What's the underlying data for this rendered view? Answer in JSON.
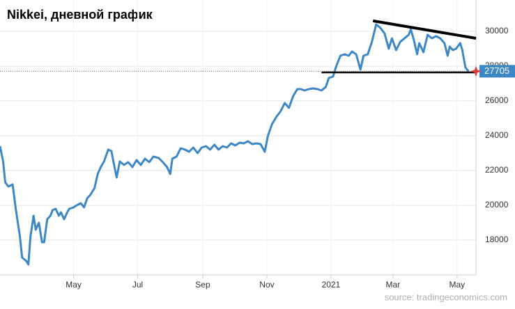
{
  "chart_data": {
    "type": "line",
    "title": "Nikkei, дневной график",
    "source": "source: tradingeconomics.com",
    "series": [
      {
        "name": "Nikkei",
        "color": "#3d87c7",
        "x": [
          0,
          3,
          5,
          8,
          12,
          15,
          19,
          21,
          25,
          27,
          29,
          32,
          34,
          37,
          40,
          42,
          45,
          48,
          50,
          53,
          56,
          58,
          61,
          64,
          66,
          70,
          73,
          77,
          80,
          83,
          86,
          90,
          93,
          96,
          99,
          103,
          106,
          109,
          111,
          114,
          118,
          122,
          126,
          130,
          134,
          138,
          142,
          146,
          151,
          155,
          159,
          162,
          164,
          168,
          172,
          176,
          180,
          184,
          188,
          192,
          196,
          200,
          204,
          208,
          212,
          216,
          220,
          224,
          228,
          232,
          236,
          240,
          244,
          248,
          252,
          255,
          259,
          263,
          267,
          271,
          275,
          279,
          283,
          286,
          290,
          294,
          298,
          302,
          306,
          310,
          313,
          317,
          320,
          324,
          328,
          332,
          335,
          339,
          343,
          346,
          350,
          354,
          358,
          362,
          366,
          370,
          373,
          377,
          381,
          385,
          389,
          391,
          394,
          397,
          399,
          403,
          407,
          411,
          415,
          419,
          423,
          426,
          428,
          431,
          434,
          438,
          440,
          443,
          446
        ],
        "values": [
          23400,
          22520,
          21320,
          21080,
          21200,
          19800,
          18200,
          17000,
          16800,
          16600,
          18200,
          19400,
          18600,
          19000,
          17880,
          17880,
          19200,
          19400,
          19720,
          19800,
          19400,
          19600,
          19200,
          19600,
          19800,
          19880,
          20000,
          20120,
          19880,
          20400,
          20600,
          21000,
          21800,
          22200,
          22520,
          23200,
          23120,
          22200,
          21600,
          22520,
          22320,
          22480,
          22200,
          22600,
          22320,
          22680,
          22480,
          22800,
          22720,
          22480,
          22200,
          21800,
          22680,
          22800,
          23280,
          23200,
          23080,
          23320,
          23000,
          23320,
          23400,
          23200,
          23480,
          23200,
          23400,
          23320,
          23560,
          23440,
          23600,
          23560,
          23680,
          23520,
          23560,
          23520,
          23080,
          24000,
          24680,
          25080,
          25400,
          25880,
          25600,
          26280,
          26680,
          26680,
          26600,
          26680,
          26720,
          26680,
          26600,
          26800,
          27320,
          27400,
          28000,
          28600,
          28680,
          28600,
          28840,
          28680,
          27800,
          28600,
          28680,
          29400,
          30400,
          30200,
          29880,
          29000,
          29600,
          28920,
          29400,
          29600,
          29800,
          30120,
          29480,
          28680,
          29320,
          28800,
          29800,
          29600,
          29720,
          29600,
          29320,
          28600,
          29120,
          28920,
          29000,
          29320,
          28920,
          27920,
          27705
        ]
      }
    ],
    "last_value": 27705,
    "trend_lines": [
      {
        "x": [
          355,
          453
        ],
        "values": [
          30600,
          29600
        ]
      },
      {
        "x": [
          306,
          453
        ],
        "values": [
          27640,
          27640
        ]
      }
    ],
    "xlim": [
      0,
      453
    ],
    "ylim": [
      16000,
      31800
    ],
    "xticks": [
      {
        "value": 70,
        "label": "May"
      },
      {
        "value": 131,
        "label": "Jul"
      },
      {
        "value": 193,
        "label": "Sep"
      },
      {
        "value": 254,
        "label": "Nov"
      },
      {
        "value": 315,
        "label": "2021"
      },
      {
        "value": 374,
        "label": "Mar"
      },
      {
        "value": 435,
        "label": "May"
      }
    ],
    "yticks": [
      18000,
      20000,
      22000,
      24000,
      26000,
      28000,
      30000
    ],
    "grid": true
  }
}
